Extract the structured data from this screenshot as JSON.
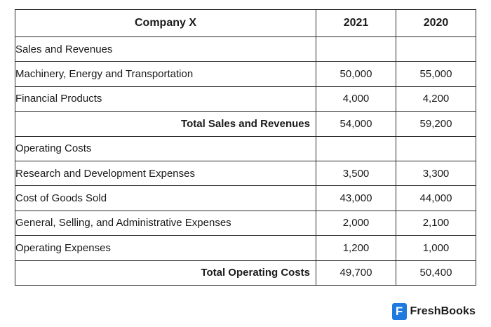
{
  "table": {
    "header": {
      "label": "Company X",
      "y1": "2021",
      "y2": "2020"
    },
    "rows": [
      {
        "label": "Sales and Revenues",
        "y1": "",
        "y2": "",
        "total": false
      },
      {
        "label": "Machinery, Energy and Transportation",
        "y1": "50,000",
        "y2": "55,000",
        "total": false
      },
      {
        "label": "Financial Products",
        "y1": "4,000",
        "y2": "4,200",
        "total": false
      },
      {
        "label": "Total Sales and Revenues",
        "y1": "54,000",
        "y2": "59,200",
        "total": true
      },
      {
        "label": "Operating Costs",
        "y1": "",
        "y2": "",
        "total": false
      },
      {
        "label": "Research and Development Expenses",
        "y1": "3,500",
        "y2": "3,300",
        "total": false
      },
      {
        "label": "Cost of Goods Sold",
        "y1": "43,000",
        "y2": "44,000",
        "total": false
      },
      {
        "label": "General, Selling, and Administrative Expenses",
        "y1": "2,000",
        "y2": "2,100",
        "total": false
      },
      {
        "label": "Operating Expenses",
        "y1": "1,200",
        "y2": "1,000",
        "total": false
      },
      {
        "label": "Total Operating Costs",
        "y1": "49,700",
        "y2": "50,400",
        "total": true
      }
    ]
  },
  "brand": {
    "icon_letter": "F",
    "name": "FreshBooks",
    "icon_color": "#1f7ae0",
    "icon_name": "freshbooks-logo-icon"
  }
}
